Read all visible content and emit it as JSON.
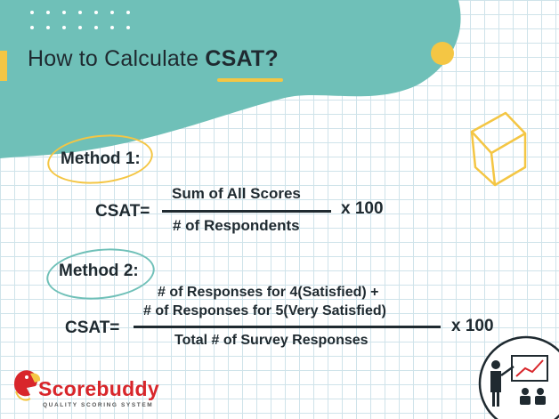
{
  "title": {
    "prefix": "How to Calculate ",
    "accent": "CSAT?"
  },
  "method1": {
    "label": "Method 1:",
    "lhs": "CSAT=",
    "numerator": "Sum of All Scores",
    "denominator": "# of Respondents",
    "multiplier": "x 100"
  },
  "method2": {
    "label": "Method 2:",
    "lhs": "CSAT=",
    "numerator_line1": "# of Responses for 4(Satisfied) +",
    "numerator_line2": "# of Responses for 5(Very Satisfied)",
    "denominator": "Total # of Survey Responses",
    "multiplier": "x 100"
  },
  "logo": {
    "name": "Scorebuddy",
    "tagline": "QUALITY SCORING SYSTEM"
  },
  "colors": {
    "teal": "#6fc0b8",
    "yellow": "#f4c644",
    "dark": "#1f2a30",
    "brand_red": "#d8262b"
  },
  "icons": [
    "presenter-chart-icon",
    "cube-icon",
    "parrot-logo-icon"
  ]
}
